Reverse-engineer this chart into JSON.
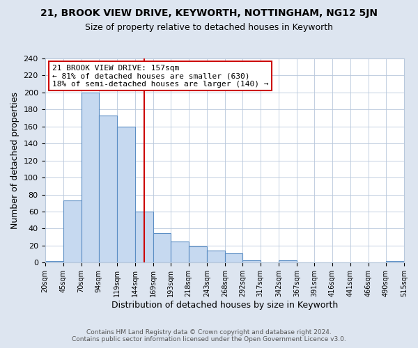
{
  "title": "21, BROOK VIEW DRIVE, KEYWORTH, NOTTINGHAM, NG12 5JN",
  "subtitle": "Size of property relative to detached houses in Keyworth",
  "xlabel": "Distribution of detached houses by size in Keyworth",
  "ylabel": "Number of detached properties",
  "bin_edges": [
    20,
    45,
    70,
    94,
    119,
    144,
    169,
    193,
    218,
    243,
    268,
    292,
    317,
    342,
    367,
    391,
    416,
    441,
    466,
    490,
    515
  ],
  "bar_heights": [
    2,
    73,
    200,
    173,
    160,
    60,
    35,
    25,
    19,
    14,
    11,
    3,
    0,
    3,
    0,
    0,
    0,
    0,
    0,
    2
  ],
  "bar_color": "#c6d9f0",
  "bar_edge_color": "#5b8ec4",
  "property_value": 157,
  "vline_color": "#cc0000",
  "annotation_text": "21 BROOK VIEW DRIVE: 157sqm\n← 81% of detached houses are smaller (630)\n18% of semi-detached houses are larger (140) →",
  "annotation_box_facecolor": "#ffffff",
  "annotation_box_edgecolor": "#cc0000",
  "ylim": [
    0,
    240
  ],
  "yticks": [
    0,
    20,
    40,
    60,
    80,
    100,
    120,
    140,
    160,
    180,
    200,
    220,
    240
  ],
  "footer_line1": "Contains HM Land Registry data © Crown copyright and database right 2024.",
  "footer_line2": "Contains public sector information licensed under the Open Government Licence v3.0.",
  "bg_color": "#dde5f0",
  "plot_bg_color": "#ffffff",
  "grid_color": "#b8c8dc"
}
